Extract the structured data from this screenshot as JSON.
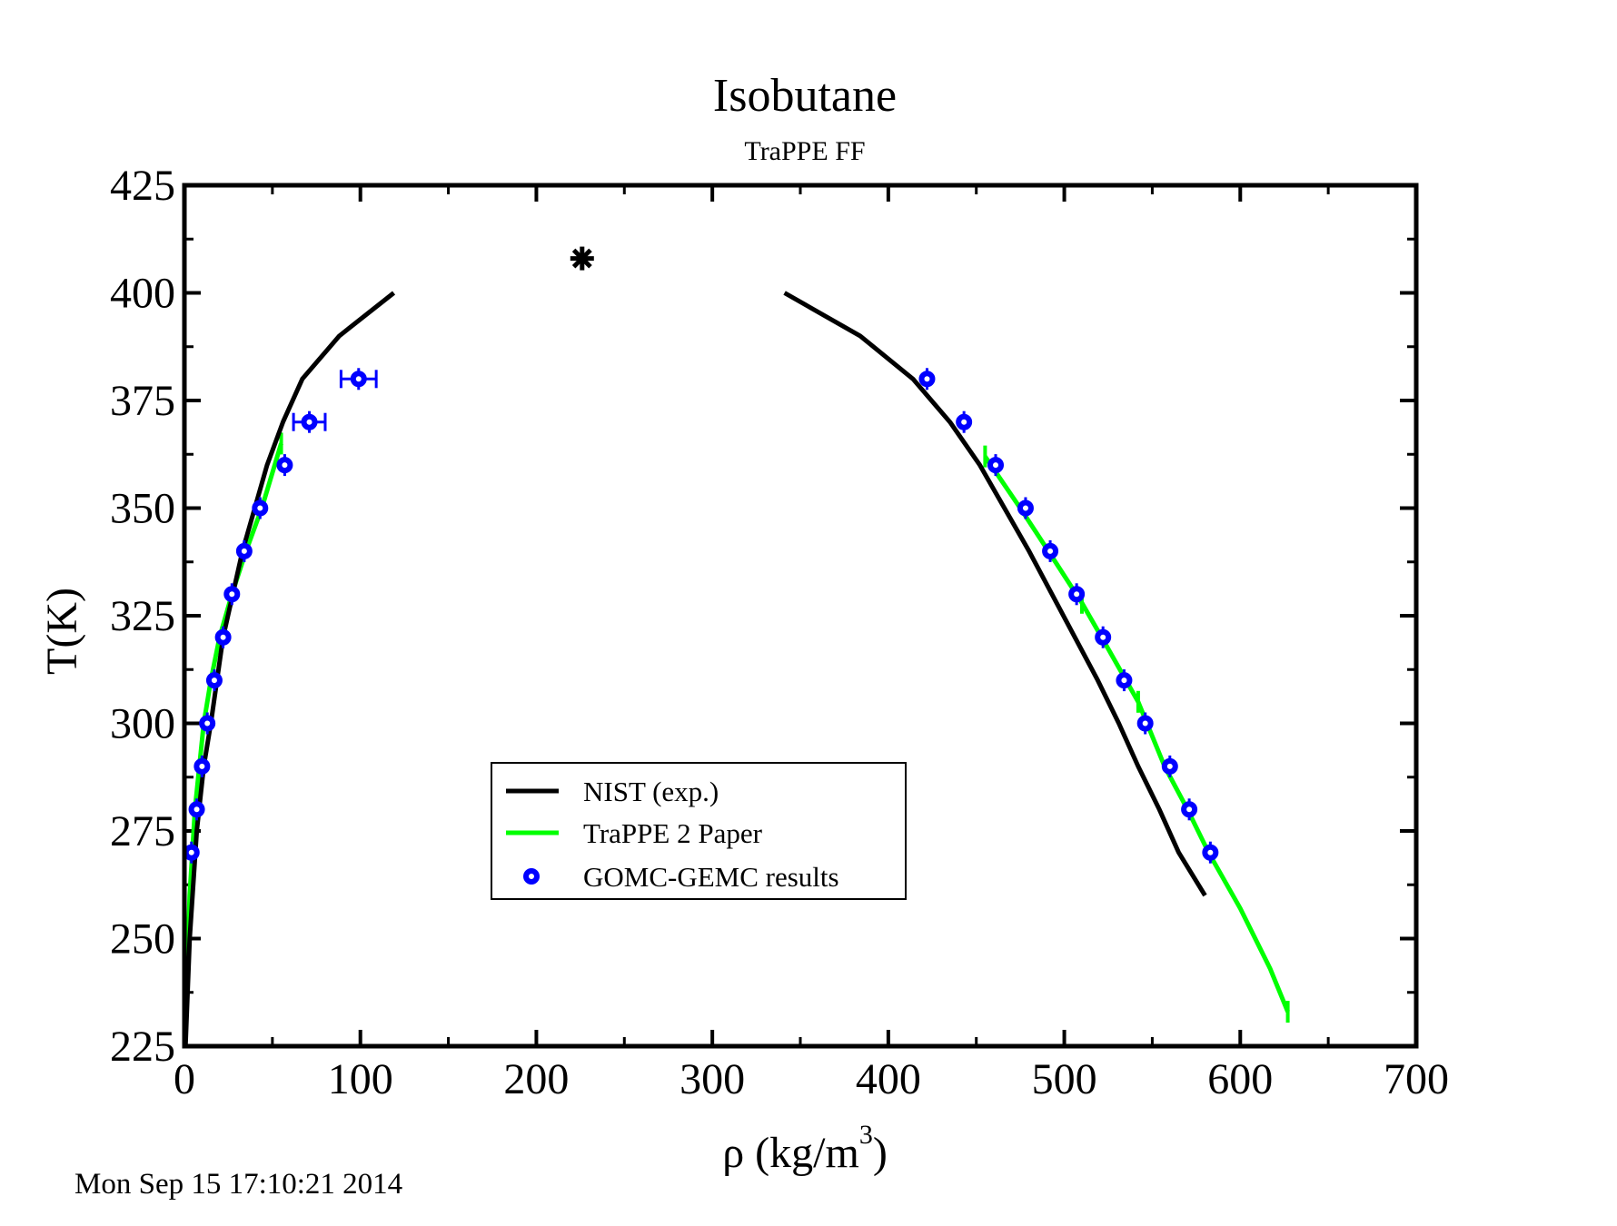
{
  "timestamp": "Mon Sep 15 17:10:21 2014",
  "chart_data": {
    "type": "line",
    "title": "Isobutane",
    "subtitle": "TraPPE FF",
    "xlabel_main": "ρ (kg/m",
    "xlabel_sup": "3",
    "xlabel_end": ")",
    "ylabel": "T(K)",
    "xlim": [
      0,
      700
    ],
    "ylim": [
      225,
      425
    ],
    "x_ticks": [
      0,
      100,
      200,
      300,
      400,
      500,
      600,
      700
    ],
    "y_ticks": [
      225,
      250,
      275,
      300,
      325,
      350,
      375,
      400,
      425
    ],
    "grid": false,
    "legend_position": "lower-center",
    "colors": {
      "nist": "#000000",
      "trappe": "#00ff00",
      "gomc": "#0000ff",
      "critical": "#000000"
    },
    "series": [
      {
        "name": "NIST (exp.)",
        "kind": "line",
        "branches": [
          [
            [
              0.6,
              225
            ],
            [
              3,
              250
            ],
            [
              7,
              275
            ],
            [
              11,
              290
            ],
            [
              15,
              300
            ],
            [
              22,
              320
            ],
            [
              33,
              340
            ],
            [
              47,
              360
            ],
            [
              56,
              370
            ],
            [
              67,
              380
            ],
            [
              88,
              390
            ],
            [
              119,
              400
            ]
          ],
          [
            [
              341,
              400
            ],
            [
              384,
              390
            ],
            [
              414,
              380
            ],
            [
              435,
              370
            ],
            [
              452,
              360
            ],
            [
              466,
              350
            ],
            [
              480,
              340
            ],
            [
              493,
              330
            ],
            [
              506,
              320
            ],
            [
              519,
              310
            ],
            [
              531,
              300
            ],
            [
              542,
              290
            ],
            [
              554,
              280
            ],
            [
              565,
              270
            ],
            [
              580,
              260
            ]
          ]
        ]
      },
      {
        "name": "TraPPE 2 Paper",
        "kind": "line",
        "branches": [
          [
            [
              0.6,
              230
            ],
            [
              3,
              260
            ],
            [
              6,
              280
            ],
            [
              11,
              300
            ],
            [
              15,
              310
            ],
            [
              20,
              320
            ],
            [
              27,
              330
            ],
            [
              35,
              340
            ],
            [
              44,
              350
            ],
            [
              55,
              365
            ]
          ],
          [
            [
              455,
              362
            ],
            [
              475,
              350
            ],
            [
              491,
              340
            ],
            [
              510,
              328
            ],
            [
              524,
              318
            ],
            [
              542,
              305
            ],
            [
              557,
              290
            ],
            [
              570,
              280
            ],
            [
              582,
              270
            ],
            [
              600,
              257
            ],
            [
              617,
              243
            ],
            [
              627,
              233
            ]
          ]
        ],
        "error_markers": [
          [
            55,
            365
          ],
          [
            455,
            362
          ],
          [
            510,
            328
          ],
          [
            542,
            305
          ],
          [
            627,
            233
          ]
        ]
      },
      {
        "name": "GOMC-GEMC results",
        "kind": "scatter",
        "points": [
          {
            "x": 4,
            "y": 270
          },
          {
            "x": 7,
            "y": 280
          },
          {
            "x": 10,
            "y": 290
          },
          {
            "x": 13,
            "y": 300
          },
          {
            "x": 17,
            "y": 310
          },
          {
            "x": 22,
            "y": 320
          },
          {
            "x": 27,
            "y": 330
          },
          {
            "x": 34,
            "y": 340
          },
          {
            "x": 43,
            "y": 350
          },
          {
            "x": 57,
            "y": 360
          },
          {
            "x": 71,
            "y": 370,
            "xerr": 9
          },
          {
            "x": 99,
            "y": 380,
            "xerr": 10
          },
          {
            "x": 422,
            "y": 380
          },
          {
            "x": 443,
            "y": 370
          },
          {
            "x": 461,
            "y": 360
          },
          {
            "x": 478,
            "y": 350
          },
          {
            "x": 492,
            "y": 340
          },
          {
            "x": 507,
            "y": 330
          },
          {
            "x": 522,
            "y": 320
          },
          {
            "x": 534,
            "y": 310
          },
          {
            "x": 546,
            "y": 300
          },
          {
            "x": 560,
            "y": 290
          },
          {
            "x": 571,
            "y": 280
          },
          {
            "x": 583,
            "y": 270
          }
        ]
      }
    ],
    "critical_point": {
      "x": 226,
      "y": 408
    }
  }
}
